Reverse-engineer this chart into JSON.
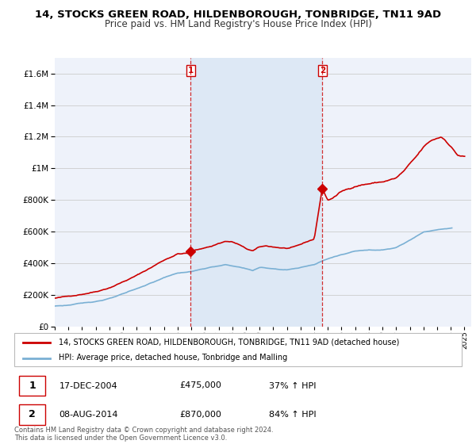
{
  "title1": "14, STOCKS GREEN ROAD, HILDENBOROUGH, TONBRIDGE, TN11 9AD",
  "title2": "Price paid vs. HM Land Registry's House Price Index (HPI)",
  "legend_line1": "14, STOCKS GREEN ROAD, HILDENBOROUGH, TONBRIDGE, TN11 9AD (detached house)",
  "legend_line2": "HPI: Average price, detached house, Tonbridge and Malling",
  "annotation1_date": "17-DEC-2004",
  "annotation1_price": "£475,000",
  "annotation1_pct": "37% ↑ HPI",
  "annotation2_date": "08-AUG-2014",
  "annotation2_price": "£870,000",
  "annotation2_pct": "84% ↑ HPI",
  "vline1_x": 2004.96,
  "vline2_x": 2014.6,
  "sale1_x": 2004.96,
  "sale1_y": 475000,
  "sale2_x": 2014.6,
  "sale2_y": 870000,
  "footer": "Contains HM Land Registry data © Crown copyright and database right 2024.\nThis data is licensed under the Open Government Licence v3.0.",
  "red_color": "#cc0000",
  "blue_color": "#7ab0d4",
  "shade_color": "#dde8f5",
  "background_color": "#eef2fa",
  "ylim": [
    0,
    1700000
  ],
  "xlim_start": 1995.0,
  "xlim_end": 2025.5
}
